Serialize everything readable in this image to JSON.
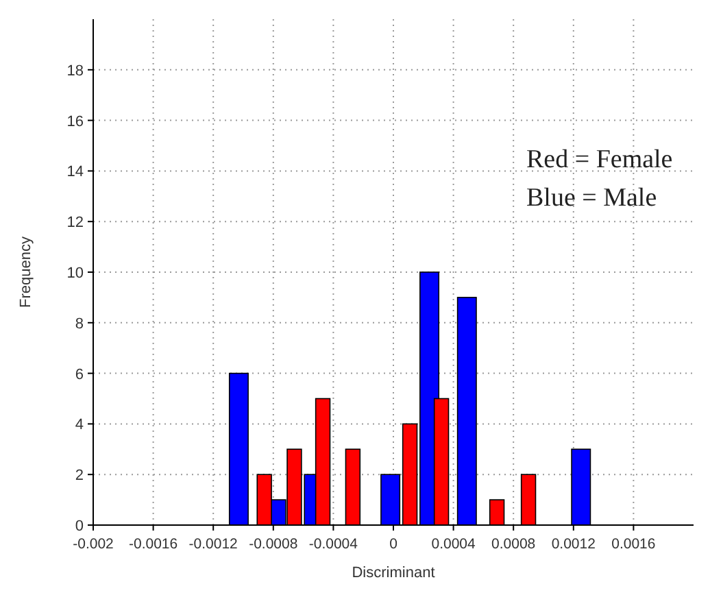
{
  "chart_data": {
    "type": "bar",
    "xlabel": "Discriminant",
    "ylabel": "Frequency",
    "annotations": [
      "Red = Female",
      "Blue = Male"
    ],
    "xlim": [
      -0.002,
      0.002
    ],
    "xticks": [
      -0.002,
      -0.0016,
      -0.0012,
      -0.0008,
      -0.0004,
      0,
      0.0004,
      0.0008,
      0.0012,
      0.0016
    ],
    "ylim": [
      0,
      20
    ],
    "yticks": [
      0,
      2,
      4,
      6,
      8,
      10,
      12,
      14,
      16,
      18
    ],
    "grid": true,
    "series": [
      {
        "color": "#0000ff",
        "x": [
          -0.00103,
          -0.00078,
          -0.00053,
          -2e-05,
          0.00024,
          0.00049,
          0.00125
        ],
        "values": [
          6,
          1,
          2,
          2,
          10,
          9,
          3
        ]
      },
      {
        "color": "#ff0000",
        "x": [
          -0.00086,
          -0.00066,
          -0.00047,
          -0.00027,
          0.00011,
          0.00032,
          0.00069,
          0.0009
        ],
        "values": [
          2,
          3,
          5,
          3,
          4,
          5,
          1,
          2
        ]
      }
    ]
  }
}
